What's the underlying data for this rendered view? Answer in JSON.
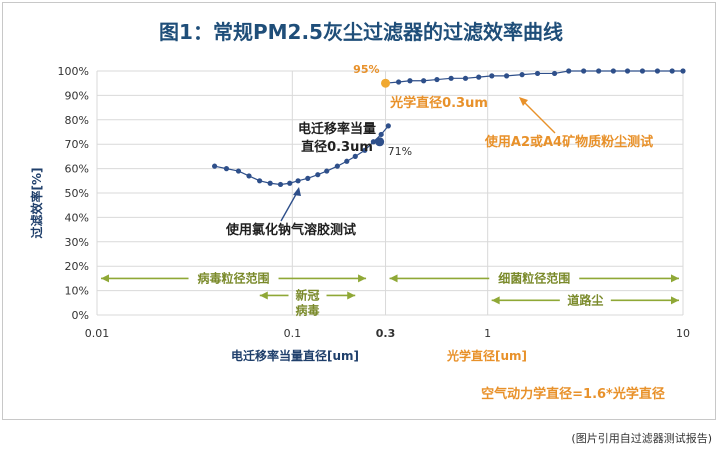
{
  "caption": "(图片引用自过滤器测试报告)",
  "colors": {
    "title": "#1f4e79",
    "series_blue": "#2e4f8a",
    "series_orange": "#f0a830",
    "range_green": "#8fa836",
    "range_text": "#7a8a2a",
    "orange_text": "#e8912a",
    "grid": "#d9d9d9"
  },
  "chart_data": {
    "type": "line",
    "title": "图1：常规PM2.5灰尘过滤器的过滤效率曲线",
    "ylabel": "过滤效率[%]",
    "xlabel_blue": "电迁移率当量直径[um]",
    "xlabel_orange": "光学直径[um]",
    "x_scale": "log",
    "xlim": [
      0.01,
      10
    ],
    "ylim": [
      0,
      100
    ],
    "x_ticks": [
      {
        "value": 0.01,
        "label": "0.01",
        "bold": false
      },
      {
        "value": 0.1,
        "label": "0.1",
        "bold": false
      },
      {
        "value": 0.3,
        "label": "0.3",
        "bold": true
      },
      {
        "value": 1,
        "label": "1",
        "bold": false
      },
      {
        "value": 10,
        "label": "10",
        "bold": false
      }
    ],
    "y_ticks": [
      0,
      10,
      20,
      30,
      40,
      50,
      60,
      70,
      80,
      90,
      100
    ],
    "y_tick_suffix": "%",
    "series": [
      {
        "name": "使用氯化钠气溶胶测试",
        "color": "#2e4f8a",
        "x": [
          0.04,
          0.046,
          0.053,
          0.06,
          0.068,
          0.077,
          0.087,
          0.097,
          0.107,
          0.12,
          0.135,
          0.15,
          0.17,
          0.19,
          0.21,
          0.235,
          0.26,
          0.285,
          0.31
        ],
        "y": [
          61,
          60,
          59,
          57,
          55,
          54,
          53.5,
          54,
          55,
          56,
          57.5,
          59,
          61,
          63,
          65,
          67.5,
          71,
          74,
          77.5
        ]
      },
      {
        "name": "使用A2或A4矿物质粉尘测试",
        "color": "#2e4f8a",
        "x": [
          0.3,
          0.35,
          0.4,
          0.47,
          0.55,
          0.65,
          0.77,
          0.9,
          1.05,
          1.25,
          1.5,
          1.8,
          2.2,
          2.6,
          3.1,
          3.7,
          4.4,
          5.2,
          6.2,
          7.4,
          8.8,
          10
        ],
        "y": [
          95,
          95.5,
          96,
          96,
          96.5,
          97,
          97,
          97.5,
          98,
          98,
          98.5,
          99,
          99,
          100,
          100,
          100,
          100,
          100,
          100,
          100,
          100,
          100
        ]
      }
    ],
    "highlight_points": [
      {
        "x": 0.3,
        "y": 95,
        "label": "95%",
        "color": "#f0a830"
      },
      {
        "x": 0.28,
        "y": 71,
        "label": "71%",
        "color": "#2e4f8a"
      }
    ],
    "ranges": [
      {
        "label": "病毒粒径范围",
        "x_start": 0.01,
        "x_end": 0.25,
        "y": 15
      },
      {
        "label": "新冠",
        "x_start": 0.065,
        "x_end": 0.22,
        "y": 8
      },
      {
        "label": "细菌粒径范围",
        "x_start": 0.3,
        "x_end": 10,
        "y": 15
      },
      {
        "label": "道路尘",
        "x_start": 1,
        "x_end": 10,
        "y": 6
      }
    ],
    "range_sublabel": "病毒",
    "annotations": {
      "blue_top_line1": "电迁移率当量",
      "blue_top_line2": "直径0.3um",
      "blue_bottom": "使用氯化钠气溶胶测试",
      "orange_top": "光学直径0.3um",
      "orange_bottom": "使用A2或A4矿物质粉尘测试",
      "conversion": "空气动力学直径=1.6*光学直径"
    }
  }
}
